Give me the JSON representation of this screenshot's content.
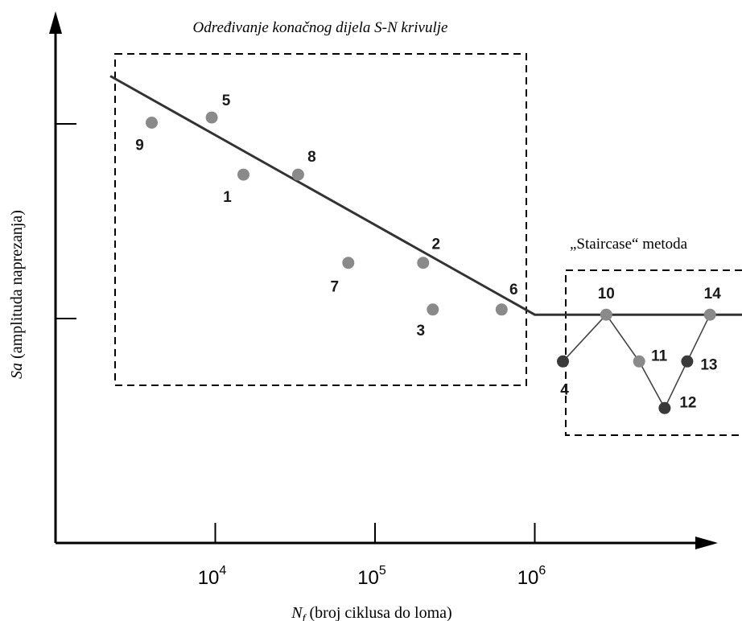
{
  "chart_data": {
    "type": "scatter",
    "x_scale": "log",
    "xlabel": {
      "symbol": "N",
      "subscript": "f",
      "text": " (broj ciklusa do loma)"
    },
    "ylabel": {
      "symbol": "Sa",
      "text": " (amplituda naprezanja)"
    },
    "xticks": [
      {
        "base": "10",
        "exp": "4",
        "value": 10000
      },
      {
        "base": "10",
        "exp": "5",
        "value": 100000
      },
      {
        "base": "10",
        "exp": "6",
        "value": 1000000
      }
    ],
    "ylim": [
      0,
      1
    ],
    "xlim": [
      1000,
      100000000
    ],
    "grid": false,
    "regions": [
      {
        "label": "Određivanje konačnog dijela S-N krivulje",
        "x_range": [
          2200,
          800000
        ],
        "y_range": [
          0.38,
          0.99
        ]
      },
      {
        "label": "„Staircase“ metoda",
        "x_range": [
          1500000,
          100000000
        ],
        "y_range": [
          0.25,
          0.6
        ]
      }
    ],
    "sn_curve": {
      "x": [
        2200,
        1000000,
        100000000
      ],
      "y": [
        0.9,
        0.44,
        0.44
      ]
    },
    "points": [
      {
        "label": "1",
        "x": 15000,
        "y": 0.71,
        "group": "finite"
      },
      {
        "label": "2",
        "x": 200000,
        "y": 0.54,
        "group": "finite"
      },
      {
        "label": "3",
        "x": 230000,
        "y": 0.45,
        "group": "finite"
      },
      {
        "label": "5",
        "x": 9500,
        "y": 0.82,
        "group": "finite"
      },
      {
        "label": "6",
        "x": 620000,
        "y": 0.45,
        "group": "finite"
      },
      {
        "label": "7",
        "x": 68000,
        "y": 0.54,
        "group": "finite"
      },
      {
        "label": "8",
        "x": 33000,
        "y": 0.71,
        "group": "finite"
      },
      {
        "label": "9",
        "x": 4000,
        "y": 0.81,
        "group": "finite"
      },
      {
        "label": "4",
        "x": 1500000,
        "y": 0.35,
        "group": "staircase",
        "status": "failed"
      },
      {
        "label": "10",
        "x": 2800000,
        "y": 0.44,
        "group": "staircase",
        "status": "runout"
      },
      {
        "label": "11",
        "x": 4500000,
        "y": 0.35,
        "group": "staircase",
        "status": "runout"
      },
      {
        "label": "12",
        "x": 6500000,
        "y": 0.26,
        "group": "staircase",
        "status": "failed"
      },
      {
        "label": "13",
        "x": 9000000,
        "y": 0.35,
        "group": "staircase",
        "status": "failed"
      },
      {
        "label": "14",
        "x": 12500000,
        "y": 0.44,
        "group": "staircase",
        "status": "runout"
      }
    ],
    "staircase_sequence": [
      "4",
      "10",
      "11",
      "12",
      "13",
      "14"
    ],
    "colors": {
      "axis": "#000000",
      "curve": "#333333",
      "runout": "#8a8a8a",
      "failed": "#3a3a3a",
      "label": "#1a1a1a"
    }
  }
}
